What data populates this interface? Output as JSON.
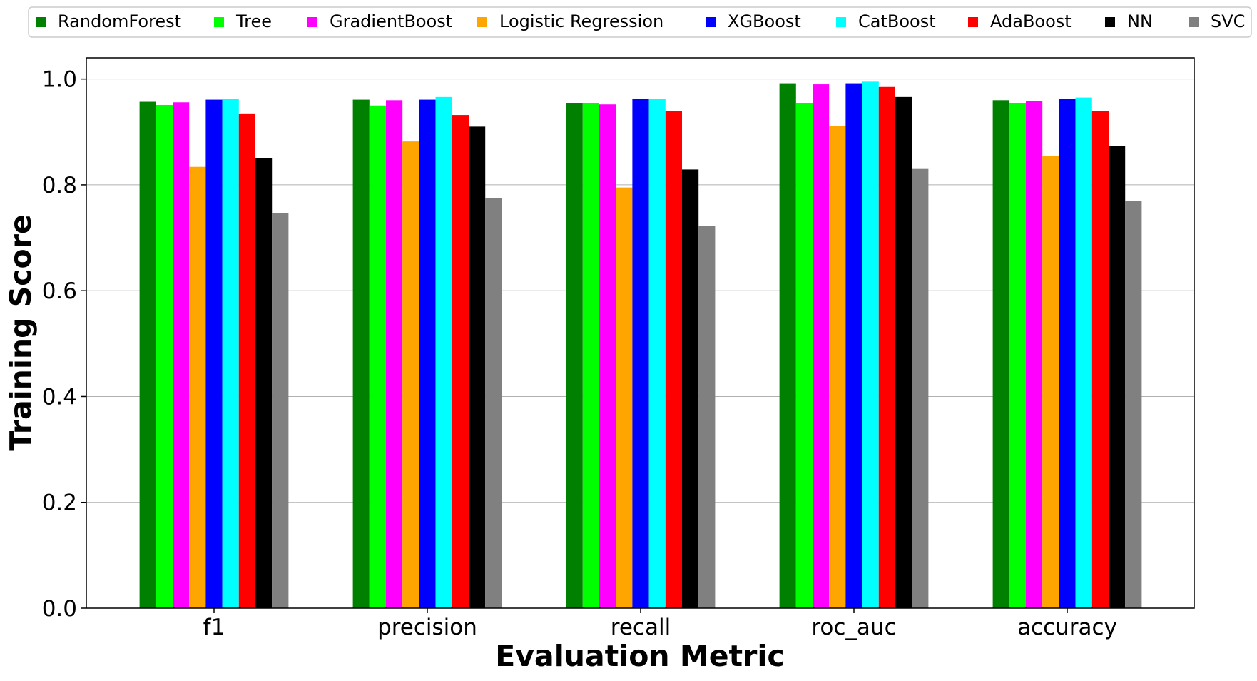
{
  "chart_data": {
    "type": "bar",
    "title": "",
    "xlabel": "Evaluation Metric",
    "ylabel": "Training Score",
    "categories": [
      "f1",
      "precision",
      "recall",
      "roc_auc",
      "accuracy"
    ],
    "ylim": [
      0,
      1.04
    ],
    "yticks": [
      "0.0",
      "0.2",
      "0.4",
      "0.6",
      "0.8",
      "1.0"
    ],
    "grid": "horizontal",
    "legend_position": "top",
    "series": [
      {
        "name": "RandomForest",
        "color": "#008000",
        "values": [
          0.957,
          0.961,
          0.955,
          0.992,
          0.96
        ]
      },
      {
        "name": "Tree",
        "color": "#00ff00",
        "values": [
          0.951,
          0.95,
          0.955,
          0.955,
          0.955
        ]
      },
      {
        "name": "GradientBoost",
        "color": "#ff00ff",
        "values": [
          0.956,
          0.96,
          0.952,
          0.99,
          0.958
        ]
      },
      {
        "name": "Logistic Regression",
        "color": "#ffa500",
        "values": [
          0.834,
          0.882,
          0.795,
          0.911,
          0.854
        ]
      },
      {
        "name": "XGBoost",
        "color": "#0000ff",
        "values": [
          0.961,
          0.961,
          0.962,
          0.992,
          0.963
        ]
      },
      {
        "name": "CatBoost",
        "color": "#00ffff",
        "values": [
          0.963,
          0.966,
          0.962,
          0.995,
          0.965
        ]
      },
      {
        "name": "AdaBoost",
        "color": "#ff0000",
        "values": [
          0.935,
          0.932,
          0.939,
          0.985,
          0.939
        ]
      },
      {
        "name": "NN",
        "color": "#000000",
        "values": [
          0.851,
          0.91,
          0.829,
          0.966,
          0.874
        ]
      },
      {
        "name": "SVC",
        "color": "#808080",
        "values": [
          0.747,
          0.775,
          0.722,
          0.83,
          0.77
        ]
      }
    ]
  }
}
